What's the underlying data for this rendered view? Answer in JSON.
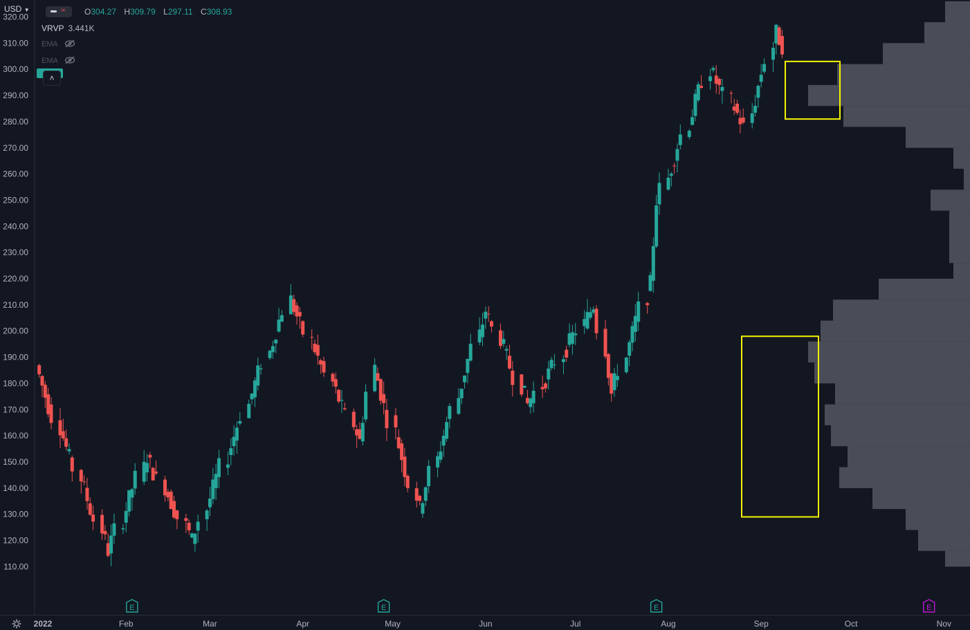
{
  "header": {
    "currency": "USD",
    "ohlc": [
      {
        "key": "O",
        "value": "304.27"
      },
      {
        "key": "H",
        "value": "309.79"
      },
      {
        "key": "L",
        "value": "297.11"
      },
      {
        "key": "C",
        "value": "308.93"
      }
    ],
    "indicator": {
      "name": "VRVP",
      "value": "3.441K"
    },
    "ema_labels": [
      "EMA",
      "EMA"
    ]
  },
  "icons": {
    "currency_dropdown": "chevron-down-icon",
    "eye_hidden": "eye-off-icon",
    "collapse": "chevron-up-icon",
    "settings": "gear-icon",
    "earnings": "earnings-marker-icon"
  },
  "colors": {
    "background": "#131722",
    "up": "#26a69a",
    "down": "#ef5350",
    "volume_profile": "#5d606b",
    "highlight_box": "#f5f500",
    "upcoming_earnings": "#c018d6"
  },
  "chart_data": {
    "type": "candlestick",
    "ylim": [
      106,
      334
    ],
    "y_ticks": [
      "110.00",
      "120.00",
      "130.00",
      "140.00",
      "150.00",
      "160.00",
      "170.00",
      "180.00",
      "190.00",
      "200.00",
      "210.00",
      "220.00",
      "230.00",
      "240.00",
      "250.00",
      "260.00",
      "270.00",
      "280.00",
      "290.00",
      "300.00",
      "310.00",
      "320.00"
    ],
    "x_ticks": [
      {
        "label": "2022",
        "date": "2022-01-01"
      },
      {
        "label": "Feb",
        "date": "2022-02-01"
      },
      {
        "label": "Mar",
        "date": "2022-03-01"
      },
      {
        "label": "Apr",
        "date": "2022-04-01"
      },
      {
        "label": "May",
        "date": "2022-05-01"
      },
      {
        "label": "Jun",
        "date": "2022-06-01"
      },
      {
        "label": "Jul",
        "date": "2022-07-01"
      },
      {
        "label": "Aug",
        "date": "2022-08-01"
      },
      {
        "label": "Sep",
        "date": "2022-09-01"
      },
      {
        "label": "Oct",
        "date": "2022-10-01"
      },
      {
        "label": "Nov",
        "date": "2022-11-01"
      }
    ],
    "earnings_markers": [
      {
        "date": "2022-02-03",
        "label": "E",
        "upcoming": false
      },
      {
        "date": "2022-04-28",
        "label": "E",
        "upcoming": false
      },
      {
        "date": "2022-07-28",
        "label": "E",
        "upcoming": false
      },
      {
        "date": "2022-10-27",
        "label": "E",
        "upcoming": true
      }
    ],
    "price_segments": [
      {
        "from": "2022-01-03",
        "to": "2022-01-27",
        "start": 187,
        "end": 116
      },
      {
        "from": "2022-01-27",
        "to": "2022-02-09",
        "start": 116,
        "end": 152
      },
      {
        "from": "2022-02-09",
        "to": "2022-02-24",
        "start": 152,
        "end": 120
      },
      {
        "from": "2022-02-24",
        "to": "2022-03-29",
        "start": 120,
        "end": 212
      },
      {
        "from": "2022-03-29",
        "to": "2022-04-21",
        "start": 212,
        "end": 158
      },
      {
        "from": "2022-04-21",
        "to": "2022-04-26",
        "start": 158,
        "end": 186
      },
      {
        "from": "2022-04-26",
        "to": "2022-05-11",
        "start": 186,
        "end": 132
      },
      {
        "from": "2022-05-11",
        "to": "2022-06-02",
        "start": 132,
        "end": 208
      },
      {
        "from": "2022-06-02",
        "to": "2022-06-16",
        "start": 208,
        "end": 172
      },
      {
        "from": "2022-06-16",
        "to": "2022-07-08",
        "start": 172,
        "end": 210
      },
      {
        "from": "2022-07-08",
        "to": "2022-07-14",
        "start": 210,
        "end": 176
      },
      {
        "from": "2022-07-14",
        "to": "2022-07-27",
        "start": 176,
        "end": 218
      },
      {
        "from": "2022-07-27",
        "to": "2022-07-29",
        "start": 218,
        "end": 250
      },
      {
        "from": "2022-07-29",
        "to": "2022-08-16",
        "start": 250,
        "end": 300
      },
      {
        "from": "2022-08-16",
        "to": "2022-08-29",
        "start": 300,
        "end": 278
      },
      {
        "from": "2022-08-29",
        "to": "2022-09-07",
        "start": 278,
        "end": 314
      },
      {
        "from": "2022-09-07",
        "to": "2022-09-09",
        "start": 314,
        "end": 309
      }
    ],
    "volume_profile": [
      {
        "y_from": 110,
        "y_to": 116,
        "volume": 0.12
      },
      {
        "y_from": 116,
        "y_to": 124,
        "volume": 0.25
      },
      {
        "y_from": 124,
        "y_to": 132,
        "volume": 0.31
      },
      {
        "y_from": 132,
        "y_to": 140,
        "volume": 0.47
      },
      {
        "y_from": 140,
        "y_to": 148,
        "volume": 0.63
      },
      {
        "y_from": 148,
        "y_to": 156,
        "volume": 0.59
      },
      {
        "y_from": 156,
        "y_to": 164,
        "volume": 0.67
      },
      {
        "y_from": 164,
        "y_to": 172,
        "volume": 0.7
      },
      {
        "y_from": 172,
        "y_to": 180,
        "volume": 0.65
      },
      {
        "y_from": 180,
        "y_to": 188,
        "volume": 0.75
      },
      {
        "y_from": 188,
        "y_to": 196,
        "volume": 0.78
      },
      {
        "y_from": 196,
        "y_to": 204,
        "volume": 0.72
      },
      {
        "y_from": 204,
        "y_to": 212,
        "volume": 0.66
      },
      {
        "y_from": 212,
        "y_to": 220,
        "volume": 0.44
      },
      {
        "y_from": 220,
        "y_to": 226,
        "volume": 0.08
      },
      {
        "y_from": 226,
        "y_to": 232,
        "volume": 0.1
      },
      {
        "y_from": 232,
        "y_to": 246,
        "volume": 0.1
      },
      {
        "y_from": 246,
        "y_to": 254,
        "volume": 0.19
      },
      {
        "y_from": 254,
        "y_to": 262,
        "volume": 0.03
      },
      {
        "y_from": 262,
        "y_to": 270,
        "volume": 0.08
      },
      {
        "y_from": 270,
        "y_to": 278,
        "volume": 0.31
      },
      {
        "y_from": 278,
        "y_to": 286,
        "volume": 0.61
      },
      {
        "y_from": 286,
        "y_to": 294,
        "volume": 0.78
      },
      {
        "y_from": 294,
        "y_to": 302,
        "volume": 0.64
      },
      {
        "y_from": 302,
        "y_to": 310,
        "volume": 0.42
      },
      {
        "y_from": 310,
        "y_to": 318,
        "volume": 0.22
      },
      {
        "y_from": 318,
        "y_to": 326,
        "volume": 0.12
      }
    ],
    "highlight_boxes": [
      {
        "y_from": 281,
        "y_to": 303
      },
      {
        "y_from": 129,
        "y_to": 198
      }
    ]
  }
}
